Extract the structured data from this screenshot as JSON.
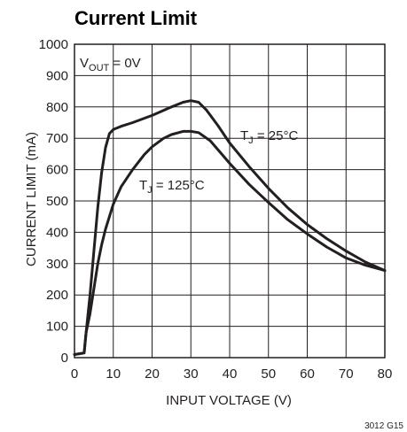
{
  "chart_data": {
    "type": "line",
    "title": "Current Limit",
    "xlabel": "INPUT VOLTAGE (V)",
    "ylabel": "CURRENT LIMIT (mA)",
    "xlim": [
      0,
      80
    ],
    "ylim": [
      0,
      1000
    ],
    "x_ticks": [
      0,
      10,
      20,
      30,
      40,
      50,
      60,
      70,
      80
    ],
    "y_ticks": [
      0,
      100,
      200,
      300,
      400,
      500,
      600,
      700,
      800,
      900,
      1000
    ],
    "grid": true,
    "annotations": [
      {
        "text": "V",
        "sub": "OUT",
        "suffix": " = 0V"
      },
      {
        "text": "T",
        "sub": "J",
        "suffix": " = 25°C"
      },
      {
        "text": "T",
        "sub": "J",
        "suffix": " = 125°C"
      }
    ],
    "series": [
      {
        "points": [
          [
            0,
            10
          ],
          [
            2.5,
            15
          ],
          [
            3,
            80
          ],
          [
            4,
            200
          ],
          [
            5,
            340
          ],
          [
            6,
            480
          ],
          [
            7,
            590
          ],
          [
            8,
            670
          ],
          [
            9,
            715
          ],
          [
            10,
            728
          ],
          [
            12,
            738
          ],
          [
            15,
            750
          ],
          [
            20,
            773
          ],
          [
            25,
            800
          ],
          [
            28,
            815
          ],
          [
            30,
            820
          ],
          [
            32,
            815
          ],
          [
            34,
            790
          ],
          [
            37,
            740
          ],
          [
            40,
            685
          ],
          [
            45,
            610
          ],
          [
            50,
            540
          ],
          [
            55,
            478
          ],
          [
            60,
            425
          ],
          [
            65,
            380
          ],
          [
            70,
            340
          ],
          [
            75,
            305
          ],
          [
            80,
            278
          ]
        ]
      },
      {
        "points": [
          [
            0,
            10
          ],
          [
            2.5,
            15
          ],
          [
            3,
            80
          ],
          [
            4,
            140
          ],
          [
            5,
            220
          ],
          [
            6,
            300
          ],
          [
            7,
            360
          ],
          [
            8,
            410
          ],
          [
            9,
            450
          ],
          [
            10,
            490
          ],
          [
            12,
            545
          ],
          [
            15,
            600
          ],
          [
            18,
            648
          ],
          [
            20,
            673
          ],
          [
            23,
            700
          ],
          [
            25,
            712
          ],
          [
            28,
            722
          ],
          [
            30,
            722
          ],
          [
            32,
            718
          ],
          [
            35,
            692
          ],
          [
            40,
            620
          ],
          [
            45,
            553
          ],
          [
            50,
            495
          ],
          [
            55,
            440
          ],
          [
            60,
            395
          ],
          [
            65,
            353
          ],
          [
            70,
            318
          ],
          [
            75,
            295
          ],
          [
            80,
            278
          ]
        ]
      }
    ],
    "figure_code": "3012 G15"
  }
}
